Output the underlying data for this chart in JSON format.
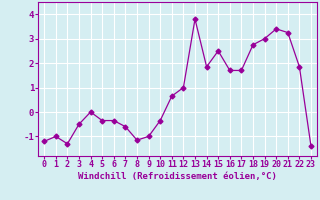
{
  "x": [
    0,
    1,
    2,
    3,
    4,
    5,
    6,
    7,
    8,
    9,
    10,
    11,
    12,
    13,
    14,
    15,
    16,
    17,
    18,
    19,
    20,
    21,
    22,
    23
  ],
  "y": [
    -1.2,
    -1.0,
    -1.3,
    -0.5,
    0.0,
    -0.35,
    -0.35,
    -0.6,
    -1.15,
    -1.0,
    -0.35,
    0.65,
    1.0,
    3.8,
    1.85,
    2.5,
    1.7,
    1.7,
    2.75,
    3.0,
    3.4,
    3.25,
    1.85,
    -1.4
  ],
  "line_color": "#990099",
  "marker": "D",
  "markersize": 2.5,
  "linewidth": 0.9,
  "bg_color": "#d5eef2",
  "grid_color": "#ffffff",
  "xlabel": "Windchill (Refroidissement éolien,°C)",
  "xlabel_fontsize": 6.5,
  "tick_fontsize": 6,
  "ytick_fontsize": 6.5,
  "ylim": [
    -1.8,
    4.5
  ],
  "yticks": [
    -1,
    0,
    1,
    2,
    3,
    4
  ],
  "xlim": [
    -0.5,
    23.5
  ],
  "xticks": [
    0,
    1,
    2,
    3,
    4,
    5,
    6,
    7,
    8,
    9,
    10,
    11,
    12,
    13,
    14,
    15,
    16,
    17,
    18,
    19,
    20,
    21,
    22,
    23
  ]
}
